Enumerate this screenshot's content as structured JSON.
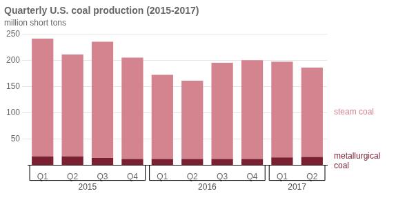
{
  "chart_data": {
    "type": "bar",
    "title": "Quarterly U.S. coal production (2015-2017)",
    "subtitle": "million short tons",
    "categories": [
      "Q1",
      "Q2",
      "Q3",
      "Q4",
      "Q1",
      "Q2",
      "Q3",
      "Q4",
      "Q1",
      "Q2"
    ],
    "groups": [
      {
        "label": "2015",
        "start": 0,
        "end": 3
      },
      {
        "label": "2016",
        "start": 4,
        "end": 7
      },
      {
        "label": "2017",
        "start": 8,
        "end": 9
      }
    ],
    "series": [
      {
        "name": "metallurgical\ncoal",
        "color": "#7b2030",
        "values": [
          17,
          17,
          14,
          12,
          12,
          12,
          12,
          12,
          15,
          16
        ]
      },
      {
        "name": "steam coal",
        "color": "#d4848e",
        "values": [
          224,
          194,
          221,
          193,
          160,
          149,
          183,
          188,
          182,
          170
        ]
      }
    ],
    "stacked": true,
    "ylim": [
      0,
      250
    ],
    "yticks": [
      50,
      100,
      150,
      200,
      250
    ],
    "grid": true
  }
}
